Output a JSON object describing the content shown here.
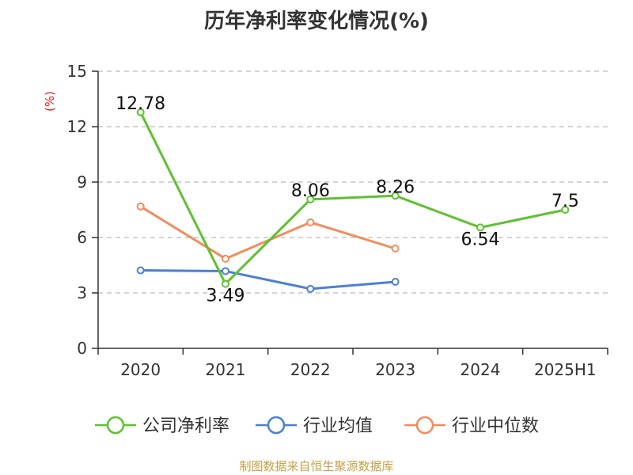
{
  "title": "历年净利率变化情况(%)",
  "source": "制图数据来自恒生聚源数据库",
  "chart_data": {
    "type": "line",
    "title": "历年净利率变化情况(%)",
    "ylabel": "(%)",
    "xlabel": "",
    "categories": [
      "2020",
      "2021",
      "2022",
      "2023",
      "2024",
      "2025H1"
    ],
    "ylim": [
      0,
      15
    ],
    "yticks": [
      0,
      3,
      6,
      9,
      12,
      15
    ],
    "grid": "horizontal-dashed",
    "legend_position": "bottom",
    "series": [
      {
        "name": "公司净利率",
        "color": "#5cc22e",
        "values": [
          12.78,
          3.49,
          8.06,
          8.26,
          6.54,
          7.5
        ],
        "labels": [
          "12.78",
          "3.49",
          "8.06",
          "8.26",
          "6.54",
          "7.5"
        ]
      },
      {
        "name": "行业均值",
        "color": "#4b7fd8",
        "values": [
          4.22,
          4.18,
          3.22,
          3.6,
          null,
          null
        ],
        "labels": []
      },
      {
        "name": "行业中位数",
        "color": "#f28c5c",
        "values": [
          7.68,
          4.85,
          6.82,
          5.4,
          null,
          null
        ],
        "labels": []
      }
    ]
  }
}
